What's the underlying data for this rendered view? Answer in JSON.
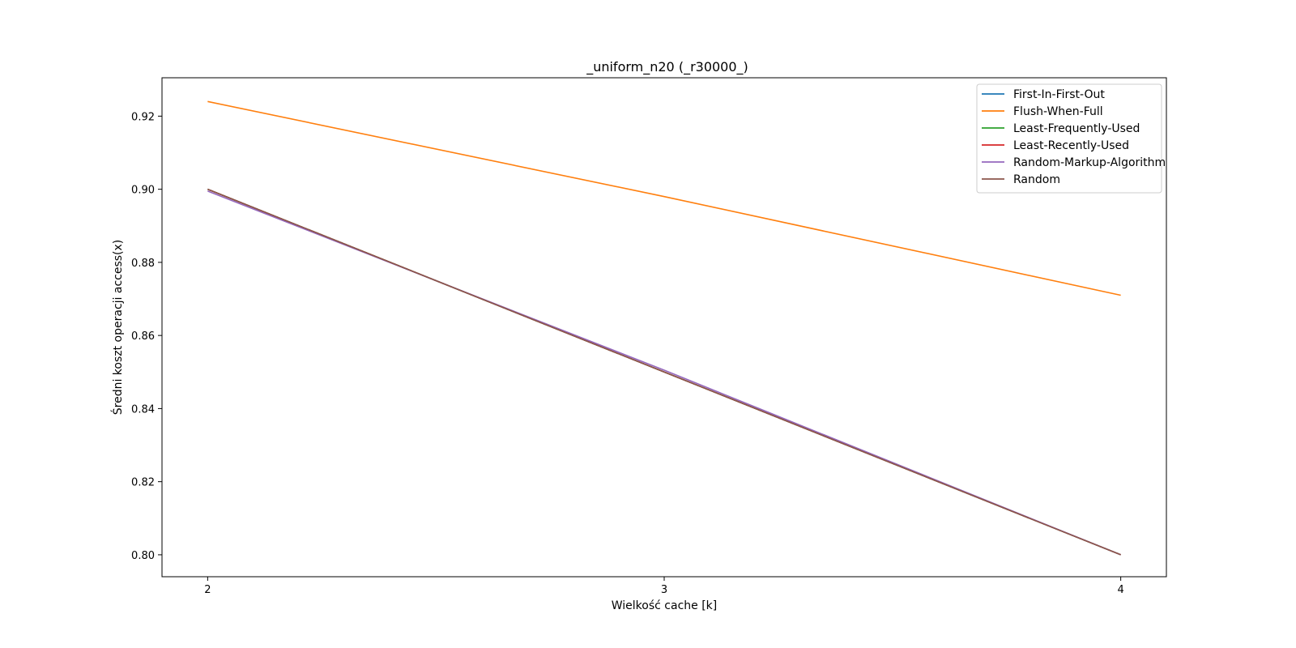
{
  "chart_data": {
    "type": "line",
    "title": "_uniform_n20 (_r30000_)",
    "xlabel": "Wielkość cache [k]",
    "ylabel": "Średni koszt operacji access(x)",
    "x": [
      2,
      3,
      4
    ],
    "x_ticks": [
      "2",
      "3",
      "4"
    ],
    "xlim": [
      1.9,
      4.1
    ],
    "ylim": [
      0.794,
      0.9305
    ],
    "y_ticks": [
      0.8,
      0.82,
      0.84,
      0.86,
      0.88,
      0.9,
      0.92
    ],
    "y_tick_labels": [
      "0.80",
      "0.82",
      "0.84",
      "0.86",
      "0.88",
      "0.90",
      "0.92"
    ],
    "grid": false,
    "legend_position": "top-right",
    "series": [
      {
        "name": "First-In-First-Out",
        "color": "#1f77b4",
        "values": [
          0.9,
          0.85,
          0.8
        ]
      },
      {
        "name": "Flush-When-Full",
        "color": "#ff7f0e",
        "values": [
          0.924,
          0.898,
          0.871
        ]
      },
      {
        "name": "Least-Frequently-Used",
        "color": "#2ca02c",
        "values": [
          0.9,
          0.85,
          0.8
        ]
      },
      {
        "name": "Least-Recently-Used",
        "color": "#d62728",
        "values": [
          0.9,
          0.85,
          0.8
        ]
      },
      {
        "name": "Random-Markup-Algorithm",
        "color": "#9467bd",
        "values": [
          0.8995,
          0.8505,
          0.8
        ]
      },
      {
        "name": "Random",
        "color": "#8c564b",
        "values": [
          0.9,
          0.85,
          0.8
        ]
      }
    ]
  }
}
